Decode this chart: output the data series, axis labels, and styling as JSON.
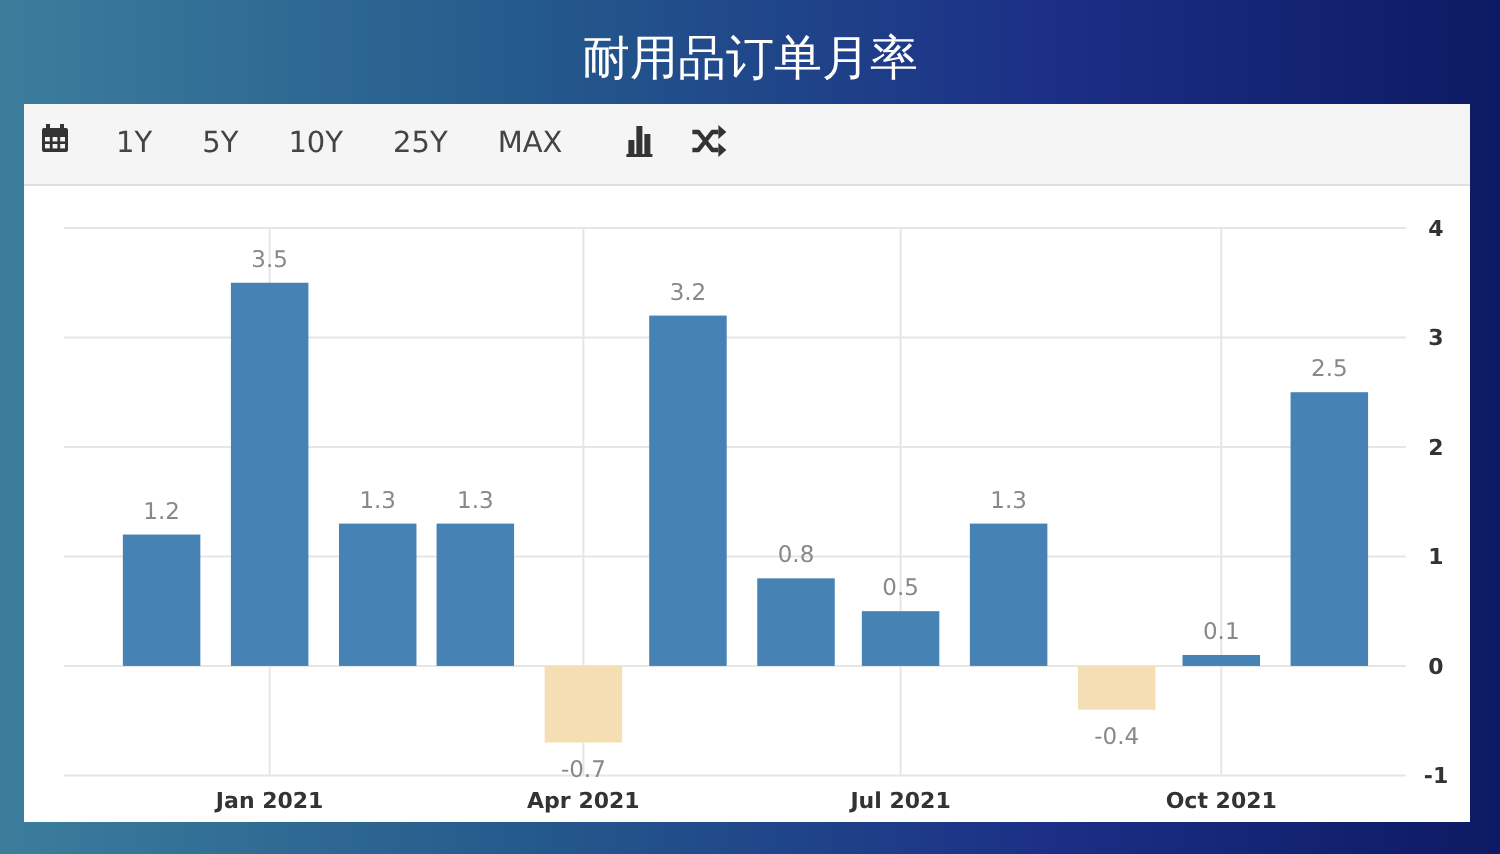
{
  "chart_data": {
    "type": "bar",
    "title": "耐用品订单月率",
    "x": [
      "2020-12",
      "2021-01",
      "2021-02",
      "2021-03",
      "2021-04",
      "2021-05",
      "2021-06",
      "2021-07",
      "2021-08",
      "2021-09",
      "2021-10",
      "2021-11"
    ],
    "values": [
      1.2,
      3.5,
      1.3,
      1.3,
      -0.7,
      3.2,
      0.8,
      0.5,
      1.3,
      -0.4,
      0.1,
      2.5
    ],
    "colors": [
      "#4682b4",
      "#4682b4",
      "#4682b4",
      "#4682b4",
      "#f5deb3",
      "#4682b4",
      "#4682b4",
      "#4682b4",
      "#4682b4",
      "#f5deb3",
      "#4682b4",
      "#4682b4"
    ],
    "xlim": [
      "2020-11-03",
      "2021-11-23"
    ],
    "xticks": [
      {
        "value": "2021-01",
        "label": "Jan 2021"
      },
      {
        "value": "2021-04",
        "label": "Apr 2021"
      },
      {
        "value": "2021-07",
        "label": "Jul 2021"
      },
      {
        "value": "2021-10",
        "label": "Oct 2021"
      }
    ],
    "ylim": [
      -1,
      4
    ],
    "yticks": [
      -1,
      0,
      1,
      2,
      3,
      4
    ],
    "grid": true,
    "data_labels": true,
    "annotations": [
      "1Y",
      "5Y",
      "10Y",
      "25Y",
      "MAX"
    ]
  }
}
